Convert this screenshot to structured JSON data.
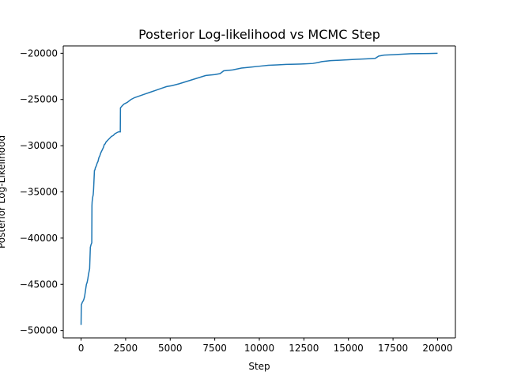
{
  "chart_data": {
    "type": "line",
    "title": "Posterior Log-likelihood vs MCMC Step",
    "xlabel": "Step",
    "ylabel": "Posterior Log-Likelihood",
    "xlim": [
      -1000,
      21000
    ],
    "ylim": [
      -50800,
      -19200
    ],
    "xticks": [
      0,
      2500,
      5000,
      7500,
      10000,
      12500,
      15000,
      17500,
      20000
    ],
    "yticks": [
      -50000,
      -45000,
      -40000,
      -35000,
      -30000,
      -25000,
      -20000
    ],
    "xtick_labels": [
      "0",
      "2500",
      "5000",
      "7500",
      "10000",
      "12500",
      "15000",
      "17500",
      "20000"
    ],
    "ytick_labels": [
      "−50000",
      "−45000",
      "−40000",
      "−35000",
      "−30000",
      "−25000",
      "−20000"
    ],
    "grid": false,
    "legend": "none",
    "series": [
      {
        "color": "#1f77b4",
        "x": [
          0,
          10,
          20,
          60,
          80,
          120,
          160,
          200,
          260,
          300,
          340,
          380,
          420,
          480,
          520,
          560,
          600,
          610,
          620,
          630,
          650,
          680,
          700,
          750,
          780,
          800,
          850,
          900,
          950,
          1000,
          1050,
          1100,
          1150,
          1200,
          1250,
          1300,
          1350,
          1400,
          1500,
          1600,
          1700,
          1800,
          1900,
          2000,
          2100,
          2200,
          2210,
          2300,
          2400,
          2500,
          2600,
          2800,
          3000,
          3300,
          3600,
          3900,
          4200,
          4500,
          4800,
          5100,
          5500,
          6000,
          6500,
          7000,
          7500,
          7800,
          8000,
          8500,
          9000,
          9500,
          10000,
          10500,
          11000,
          11500,
          12000,
          12500,
          13000,
          13300,
          13500,
          14000,
          14500,
          15000,
          15500,
          16000,
          16500,
          16700,
          17000,
          17500,
          18000,
          18500,
          19000,
          19500,
          20000
        ],
        "y": [
          -49400,
          -47800,
          -47200,
          -47000,
          -46900,
          -46800,
          -46600,
          -46300,
          -45500,
          -45000,
          -44800,
          -44400,
          -43900,
          -43300,
          -41000,
          -40700,
          -40500,
          -36500,
          -36100,
          -35900,
          -35600,
          -35300,
          -34800,
          -32700,
          -32600,
          -32400,
          -32200,
          -31900,
          -31700,
          -31300,
          -31100,
          -30800,
          -30600,
          -30400,
          -30200,
          -29900,
          -29800,
          -29600,
          -29400,
          -29200,
          -29000,
          -28900,
          -28700,
          -28600,
          -28500,
          -28500,
          -25900,
          -25700,
          -25500,
          -25400,
          -25300,
          -25000,
          -24800,
          -24600,
          -24400,
          -24200,
          -24000,
          -23800,
          -23600,
          -23500,
          -23300,
          -23000,
          -22700,
          -22400,
          -22300,
          -22200,
          -21900,
          -21800,
          -21600,
          -21500,
          -21400,
          -21300,
          -21250,
          -21200,
          -21180,
          -21150,
          -21100,
          -21000,
          -20900,
          -20800,
          -20750,
          -20700,
          -20650,
          -20600,
          -20550,
          -20300,
          -20200,
          -20150,
          -20100,
          -20050,
          -20030,
          -20020,
          -20000
        ]
      }
    ]
  }
}
